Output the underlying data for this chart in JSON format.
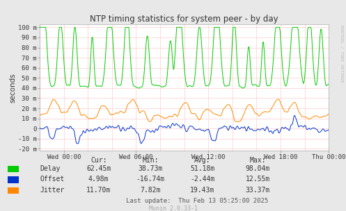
{
  "title": "NTP timing statistics for system peer - by day",
  "ylabel": "seconds",
  "right_label": "RRDTOOL / TOBI OETIKER",
  "bg_color": "#e8e8e8",
  "plot_bg_color": "#ffffff",
  "delay_color": "#00cc00",
  "offset_color": "#0033cc",
  "jitter_color": "#ff8800",
  "yticks": [
    -20,
    -10,
    0,
    10,
    20,
    30,
    40,
    50,
    60,
    70,
    80,
    90,
    100
  ],
  "ytick_labels": [
    "-20 m",
    "-10 m",
    "0",
    "10 m",
    "20 m",
    "30 m",
    "40 m",
    "50 m",
    "60 m",
    "70 m",
    "80 m",
    "90 m",
    "100 m"
  ],
  "xtick_label_pos": [
    0.0833,
    0.3333,
    0.5833,
    0.8333,
    1.0
  ],
  "xtick_labels": [
    "Wed 00:00",
    "Wed 06:00",
    "Wed 12:00",
    "Wed 18:00",
    "Thu 00:00"
  ],
  "legend_items": [
    "Delay",
    "Offset",
    "Jitter"
  ],
  "legend_colors": [
    "#00cc00",
    "#0033cc",
    "#ff8800"
  ],
  "stats_header": [
    "Cur:",
    "Min:",
    "Avg:",
    "Max:"
  ],
  "stats_delay": [
    "62.45m",
    "38.73m",
    "51.18m",
    "98.04m"
  ],
  "stats_offset": [
    "4.98m",
    "-16.74m",
    "-2.44m",
    "12.55m"
  ],
  "stats_jitter": [
    "11.70m",
    "7.82m",
    "19.43m",
    "33.37m"
  ],
  "last_update": "Last update:  Thu Feb 13 05:25:00 2025",
  "munin_version": "Munin 2.0.33-1",
  "ylim": [
    -22,
    103
  ],
  "num_points": 400,
  "grid_line_color": "#ffcccc",
  "vgrid_positions": [
    0.0,
    0.0833,
    0.1667,
    0.25,
    0.3333,
    0.4167,
    0.5,
    0.5833,
    0.6667,
    0.75,
    0.8333,
    0.9167,
    1.0
  ]
}
